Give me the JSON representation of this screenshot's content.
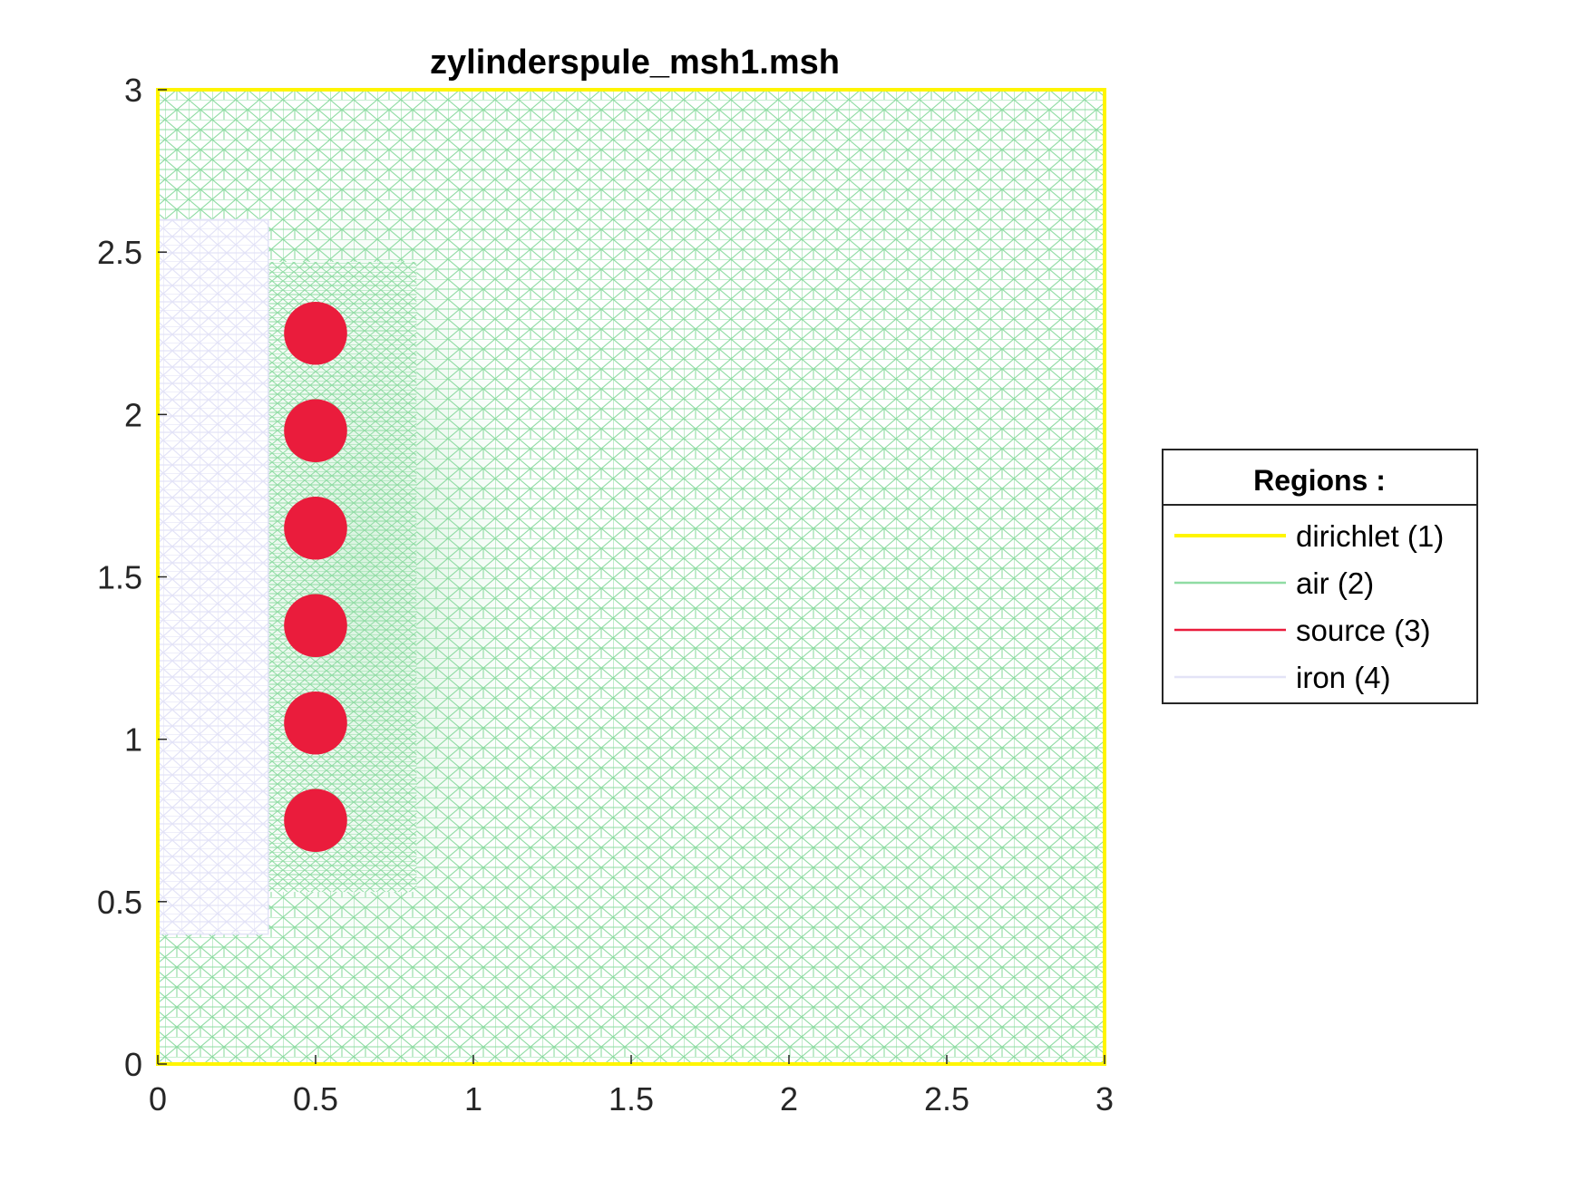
{
  "chart_data": {
    "type": "mesh",
    "title": "zylinderspule_msh1.msh",
    "xlim": [
      0,
      3
    ],
    "ylim": [
      0,
      3
    ],
    "x_ticks": [
      0,
      0.5,
      1,
      1.5,
      2,
      2.5,
      3
    ],
    "x_tick_labels": [
      "0",
      "0.5",
      "1",
      "1.5",
      "2",
      "2.5",
      "3"
    ],
    "y_ticks": [
      0,
      0.5,
      1,
      1.5,
      2,
      2.5,
      3
    ],
    "y_tick_labels": [
      "0",
      "0.5",
      "1",
      "1.5",
      "2",
      "2.5",
      "3"
    ],
    "grid": false,
    "legend": {
      "title": "Regions :",
      "placement": "outside-right",
      "entries": [
        {
          "label": "dirichlet (1)",
          "color": "#FFF500",
          "name": "dirichlet"
        },
        {
          "label": "air (2)",
          "color": "#8FDCA3",
          "name": "air"
        },
        {
          "label": "source (3)",
          "color": "#EA1C3C",
          "name": "source"
        },
        {
          "label": "iron (4)",
          "color": "#E3E3F7",
          "name": "iron"
        }
      ]
    },
    "regions": {
      "air": {
        "x": [
          0,
          3
        ],
        "y": [
          0,
          3
        ]
      },
      "iron": {
        "x": [
          0,
          0.35
        ],
        "y": [
          0.4,
          2.6
        ]
      },
      "sources": {
        "radius": 0.1,
        "centers": [
          [
            0.5,
            0.75
          ],
          [
            0.5,
            1.05
          ],
          [
            0.5,
            1.35
          ],
          [
            0.5,
            1.65
          ],
          [
            0.5,
            1.95
          ],
          [
            0.5,
            2.25
          ]
        ]
      },
      "dirichlet_boundary": {
        "x": [
          0,
          3
        ],
        "y": [
          0,
          3
        ]
      }
    }
  }
}
